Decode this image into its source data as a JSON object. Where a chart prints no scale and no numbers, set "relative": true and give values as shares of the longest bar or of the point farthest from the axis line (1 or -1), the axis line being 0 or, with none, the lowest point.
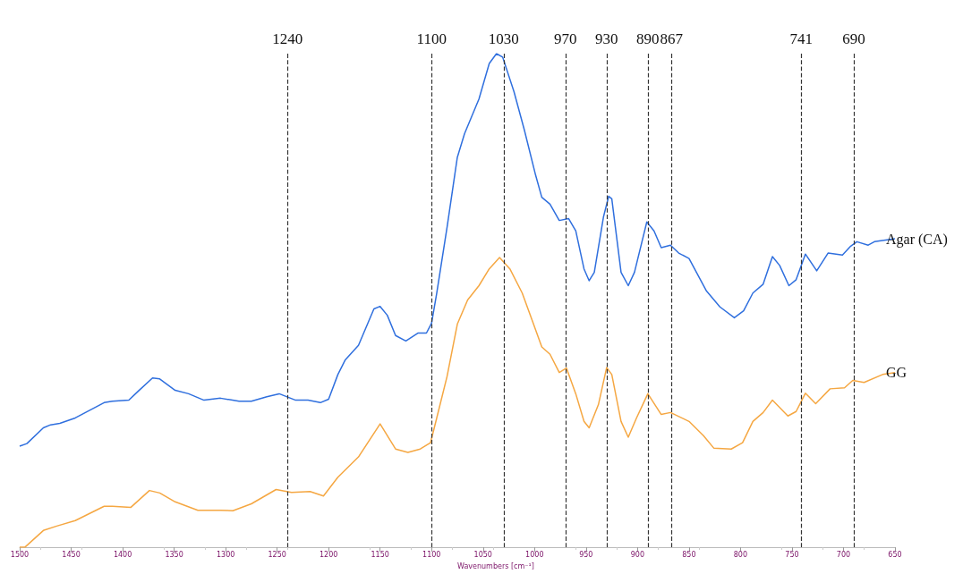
{
  "chart_data": {
    "type": "line",
    "relative": true,
    "xlabel": "Wavenumbers [cm⁻¹]",
    "xlim": [
      1500,
      650
    ],
    "xticks": [
      1500,
      1450,
      1400,
      1350,
      1300,
      1250,
      1200,
      1150,
      1100,
      1050,
      1000,
      950,
      900,
      850,
      800,
      750,
      700,
      650
    ],
    "tick_labels": "x",
    "legend": false,
    "grid": false,
    "series": [
      {
        "name": "Agar (CA)",
        "color": "#2f6fde",
        "x": [
          1500,
          1493,
          1477,
          1470,
          1461,
          1446,
          1418,
          1410,
          1394,
          1385,
          1371,
          1364,
          1349,
          1336,
          1321,
          1305,
          1287,
          1275,
          1260,
          1248,
          1232,
          1220,
          1208,
          1200,
          1191,
          1184,
          1171,
          1156,
          1150,
          1143,
          1135,
          1125,
          1113,
          1105,
          1100,
          1095,
          1085,
          1075,
          1068,
          1054,
          1044,
          1037,
          1031,
          1020,
          1010,
          999,
          993,
          985,
          976,
          967,
          960,
          952,
          947,
          942,
          933,
          928,
          925,
          916,
          909,
          903,
          891,
          884,
          877,
          868,
          860,
          850,
          833,
          820,
          806,
          797,
          788,
          778,
          769,
          762,
          753,
          746,
          737,
          726,
          715,
          701,
          693,
          687,
          676,
          670,
          650
        ],
        "values": [
          0.205,
          0.21,
          0.242,
          0.248,
          0.251,
          0.262,
          0.293,
          0.296,
          0.298,
          0.316,
          0.343,
          0.341,
          0.318,
          0.311,
          0.298,
          0.302,
          0.296,
          0.296,
          0.305,
          0.311,
          0.298,
          0.298,
          0.293,
          0.3,
          0.35,
          0.379,
          0.409,
          0.483,
          0.488,
          0.47,
          0.429,
          0.418,
          0.434,
          0.434,
          0.454,
          0.515,
          0.648,
          0.79,
          0.838,
          0.908,
          0.98,
          1.0,
          0.993,
          0.923,
          0.846,
          0.754,
          0.709,
          0.695,
          0.662,
          0.666,
          0.641,
          0.564,
          0.54,
          0.557,
          0.67,
          0.711,
          0.706,
          0.557,
          0.53,
          0.557,
          0.659,
          0.641,
          0.607,
          0.612,
          0.596,
          0.585,
          0.519,
          0.487,
          0.465,
          0.479,
          0.515,
          0.533,
          0.589,
          0.571,
          0.53,
          0.542,
          0.594,
          0.56,
          0.596,
          0.592,
          0.61,
          0.619,
          0.612,
          0.619,
          0.625
        ]
      },
      {
        "name": "GG",
        "color": "#f5a742",
        "x": [
          1500,
          1495,
          1477,
          1464,
          1446,
          1418,
          1410,
          1392,
          1374,
          1364,
          1349,
          1327,
          1305,
          1293,
          1275,
          1251,
          1236,
          1218,
          1205,
          1191,
          1171,
          1150,
          1135,
          1123,
          1111,
          1101,
          1095,
          1085,
          1075,
          1065,
          1054,
          1044,
          1034,
          1024,
          1012,
          1001,
          993,
          985,
          976,
          969,
          960,
          952,
          947,
          938,
          930,
          925,
          916,
          909,
          901,
          890,
          877,
          868,
          850,
          836,
          826,
          809,
          798,
          788,
          778,
          769,
          754,
          746,
          737,
          727,
          713,
          699,
          691,
          680,
          662,
          650
        ],
        "values": [
          0.0,
          0.0,
          0.034,
          0.043,
          0.054,
          0.083,
          0.083,
          0.081,
          0.115,
          0.11,
          0.092,
          0.075,
          0.075,
          0.074,
          0.088,
          0.117,
          0.111,
          0.113,
          0.104,
          0.142,
          0.183,
          0.25,
          0.199,
          0.192,
          0.199,
          0.212,
          0.262,
          0.346,
          0.452,
          0.501,
          0.53,
          0.564,
          0.587,
          0.564,
          0.515,
          0.452,
          0.406,
          0.391,
          0.354,
          0.363,
          0.311,
          0.255,
          0.242,
          0.289,
          0.364,
          0.35,
          0.255,
          0.223,
          0.262,
          0.311,
          0.269,
          0.273,
          0.255,
          0.226,
          0.201,
          0.199,
          0.212,
          0.255,
          0.273,
          0.298,
          0.266,
          0.275,
          0.312,
          0.291,
          0.321,
          0.323,
          0.338,
          0.334,
          0.35,
          0.354
        ]
      }
    ],
    "ref_lines": [
      {
        "axis": "x",
        "value": 1240,
        "label": "1240",
        "line_style": "dashed"
      },
      {
        "axis": "x",
        "value": 1100,
        "label": "1100",
        "line_style": "dashed"
      },
      {
        "axis": "x",
        "value": 1030,
        "label": "1030",
        "line_style": "dashed"
      },
      {
        "axis": "x",
        "value": 970,
        "label": "970",
        "line_style": "dashed"
      },
      {
        "axis": "x",
        "value": 930,
        "label": "930",
        "line_style": "dashed"
      },
      {
        "axis": "x",
        "value": 890,
        "label": "890",
        "line_style": "dashed"
      },
      {
        "axis": "x",
        "value": 867,
        "label": "867",
        "line_style": "dashed"
      },
      {
        "axis": "x",
        "value": 741,
        "label": "741",
        "line_style": "dashed"
      },
      {
        "axis": "x",
        "value": 690,
        "label": "690",
        "line_style": "dashed"
      }
    ]
  }
}
